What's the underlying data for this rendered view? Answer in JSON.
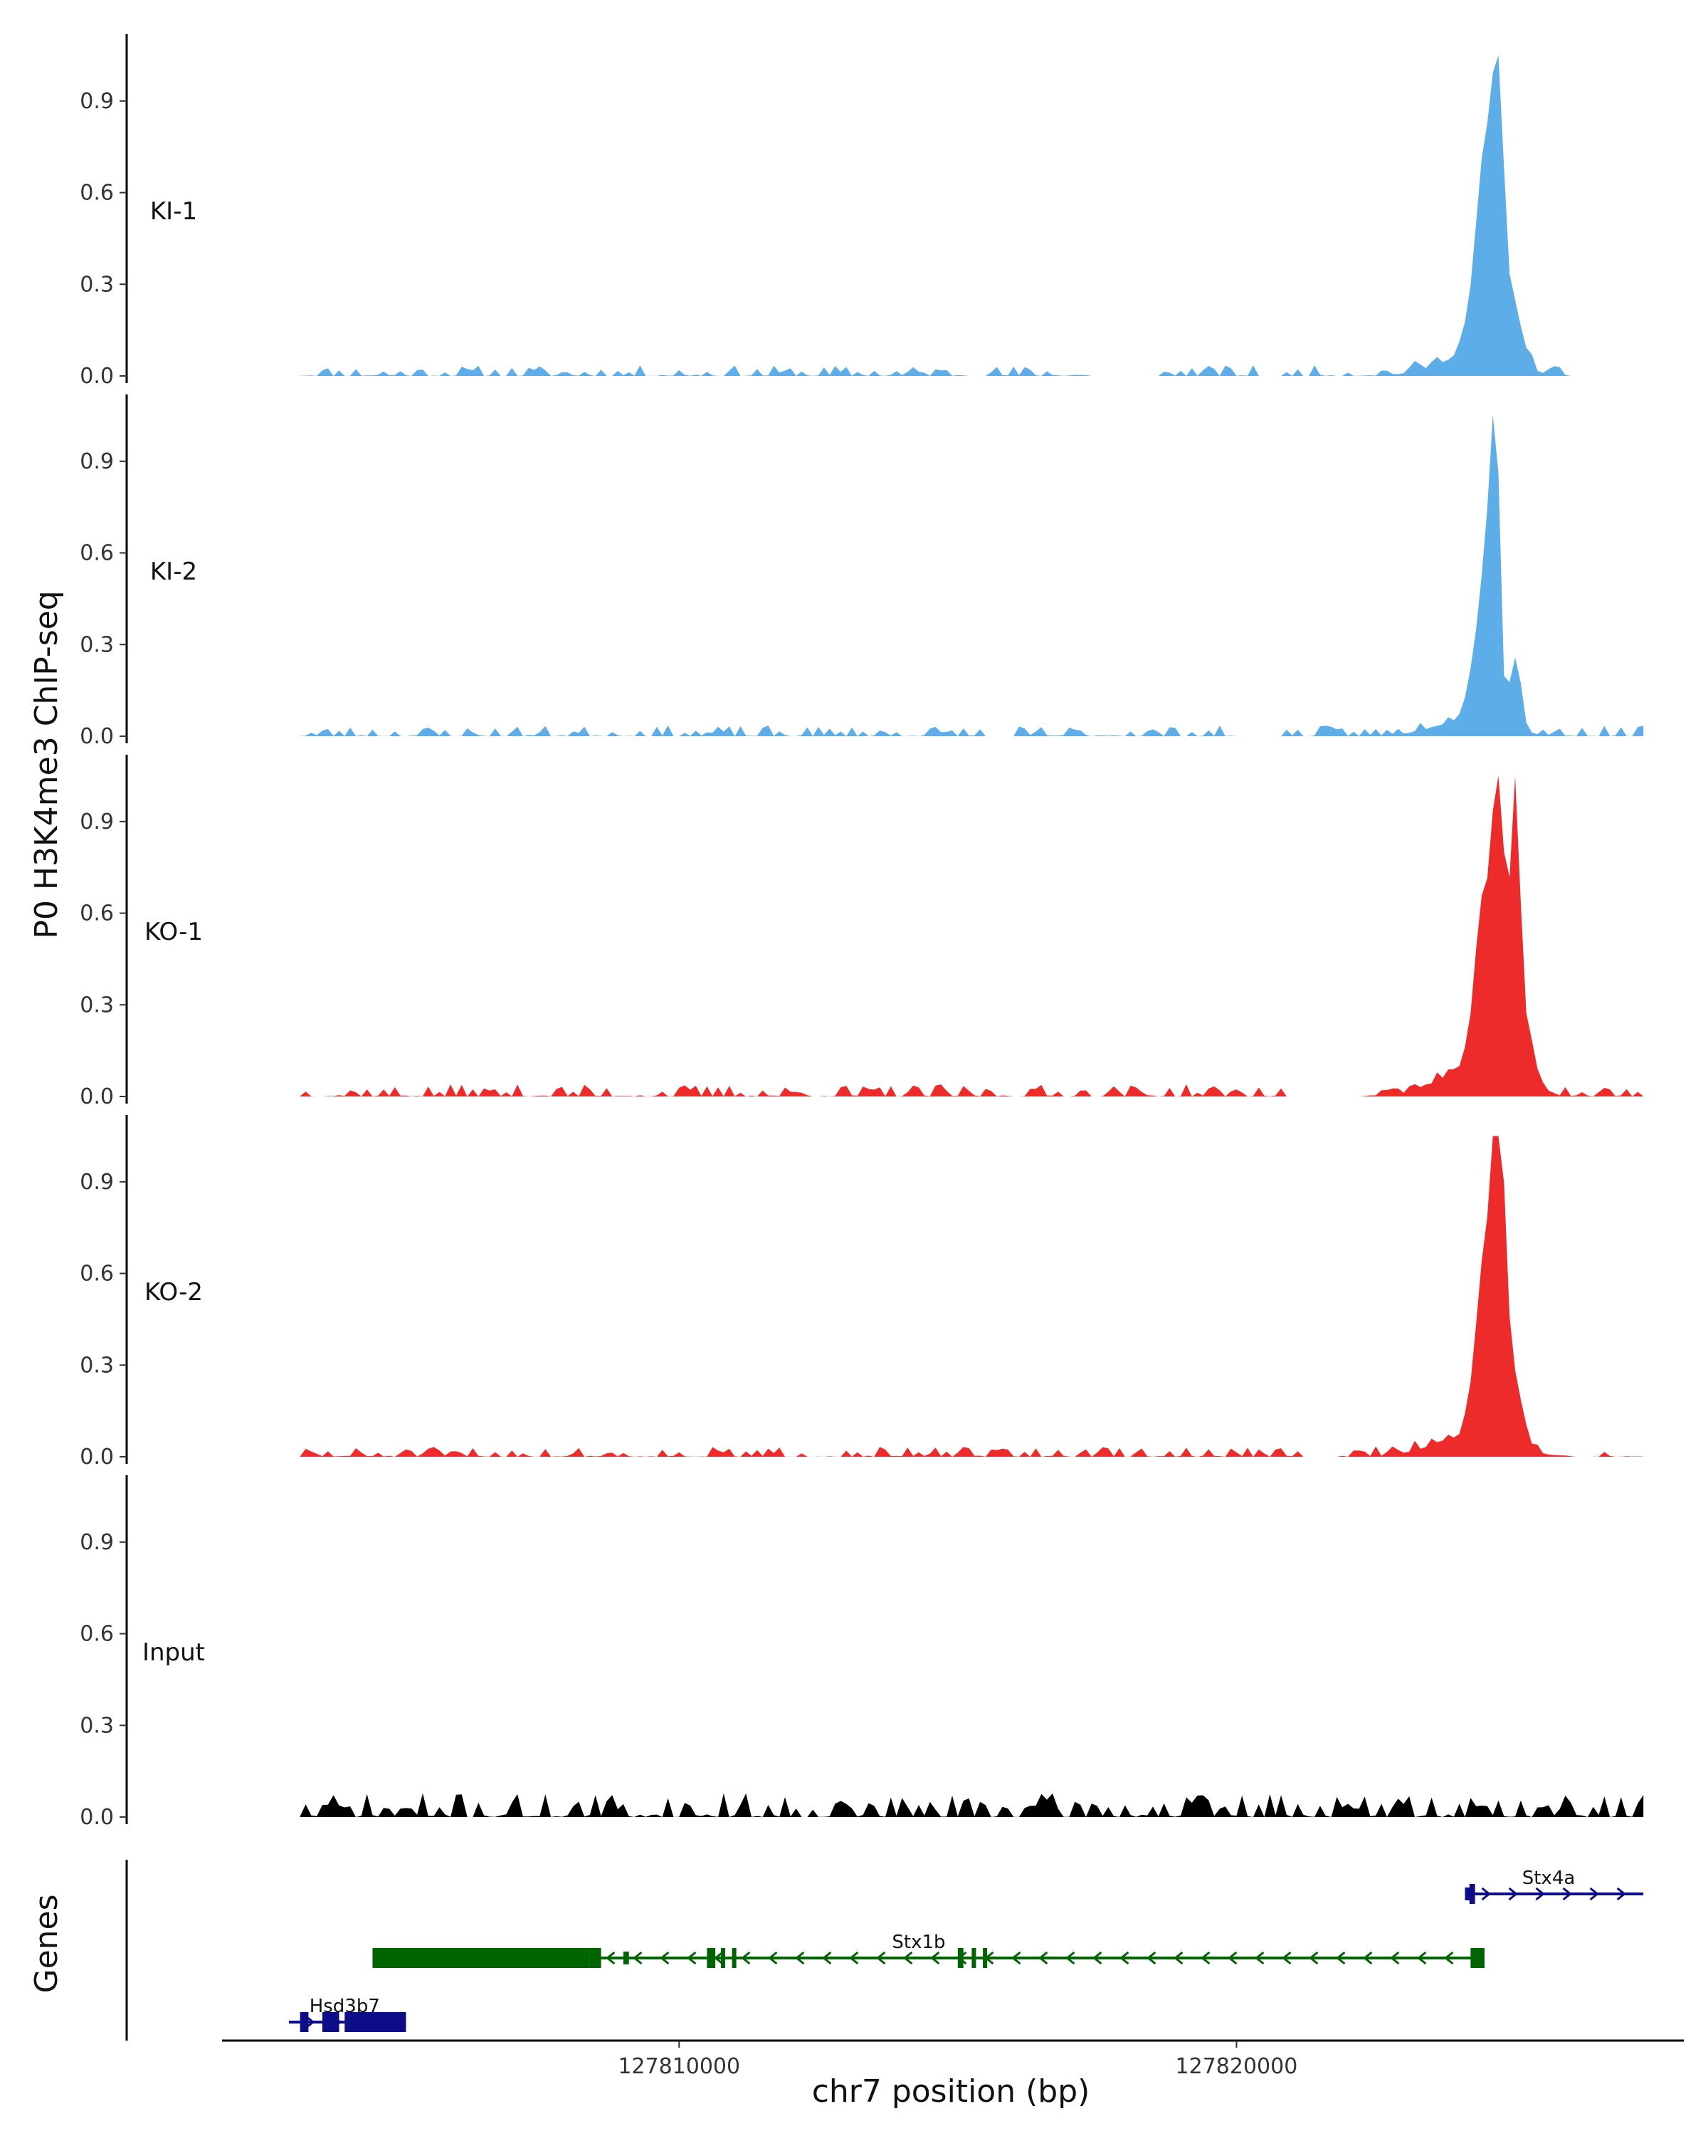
{
  "chart_data": {
    "type": "area",
    "ylabel": "P0 H3K4me3 ChIP-seq",
    "xlabel": "chr7 position (bp)",
    "genes_label": "Genes",
    "xlim": [
      127801800,
      127828000
    ],
    "ylim": [
      0,
      1.1
    ],
    "y_ticks": [
      0.0,
      0.3,
      0.6,
      0.9
    ],
    "y_tick_labels": [
      "0.0",
      "0.3",
      "0.6",
      "0.9"
    ],
    "x_ticks": [
      127810000,
      127820000
    ],
    "x_tick_labels": [
      "127810000",
      "127820000"
    ],
    "baseline_start": 127803200,
    "baseline_end": 127827300,
    "bin_bp": 300,
    "tracks": [
      {
        "name": "KI-1",
        "color": "#5DADE8",
        "gaps": [
          [
            127817400,
            127818600
          ],
          [
            127820500,
            127820800
          ],
          [
            127826000,
            127827300
          ]
        ],
        "peaks": [
          [
            127824250,
            600,
            0.04
          ],
          [
            127824350,
            180,
            0.13
          ],
          [
            127824500,
            150,
            0.3
          ],
          [
            127824700,
            90,
            0.44
          ],
          [
            127824950,
            170,
            0.12
          ]
        ],
        "noise_seed": 11,
        "noise_amp": 0.022
      },
      {
        "name": "KI-2",
        "color": "#5DADE8",
        "gaps": [
          [
            127815500,
            127816000
          ],
          [
            127820000,
            127820800
          ]
        ],
        "peaks": [
          [
            127824150,
            600,
            0.03
          ],
          [
            127824350,
            160,
            0.15
          ],
          [
            127824550,
            120,
            0.3
          ],
          [
            127824650,
            70,
            0.42
          ],
          [
            127825000,
            100,
            0.14
          ]
        ],
        "noise_seed": 23,
        "noise_amp": 0.022
      },
      {
        "name": "KO-1",
        "color": "#EE2B2B",
        "gaps": [
          [
            127820900,
            127822200
          ]
        ],
        "peaks": [
          [
            127824200,
            600,
            0.05
          ],
          [
            127824450,
            150,
            0.35
          ],
          [
            127824700,
            80,
            0.55
          ],
          [
            127825000,
            80,
            0.42
          ],
          [
            127825000,
            240,
            0.18
          ]
        ],
        "noise_seed": 37,
        "noise_amp": 0.025
      },
      {
        "name": "KO-2",
        "color": "#EE2B2B",
        "gaps": [
          [
            127821200,
            127821800
          ],
          [
            127826100,
            127826300
          ]
        ],
        "peaks": [
          [
            127824200,
            650,
            0.04
          ],
          [
            127824450,
            160,
            0.3
          ],
          [
            127824700,
            100,
            0.45
          ],
          [
            127824800,
            220,
            0.2
          ]
        ],
        "noise_seed": 51,
        "noise_amp": 0.02
      },
      {
        "name": "Input",
        "color": "#000000",
        "gaps": [],
        "peaks": [],
        "noise_seed": 71,
        "noise_amp": 0.05
      }
    ],
    "gene_tracks": [
      {
        "name": "Stx4a",
        "color": "#0D0D8A",
        "start": 127824100,
        "end": 127827300,
        "strand": "+",
        "label_pos": 127825600,
        "exons": [
          [
            127824100,
            127824220,
            "thin"
          ],
          [
            127824180,
            127824280,
            "thick"
          ]
        ]
      },
      {
        "name": "Stx1b",
        "color": "#006400",
        "start": 127804500,
        "end": 127824400,
        "strand": "-",
        "label_pos": 127814300,
        "exons": [
          [
            127804500,
            127808400,
            "thick"
          ],
          [
            127808400,
            127808600,
            "thick"
          ],
          [
            127809000,
            127809100,
            "thin"
          ],
          [
            127810500,
            127810650,
            "thick"
          ],
          [
            127810750,
            127810800,
            "thick"
          ],
          [
            127810950,
            127811000,
            "thick"
          ],
          [
            127815000,
            127815100,
            "thick"
          ],
          [
            127815250,
            127815300,
            "thick"
          ],
          [
            127815450,
            127815500,
            "thick"
          ],
          [
            127824200,
            127824450,
            "thick"
          ]
        ]
      },
      {
        "name": "Hsd3b7",
        "color": "#0D0D8A",
        "start": 127803000,
        "end": 127805100,
        "strand": "+",
        "label_pos": 127804000,
        "exons": [
          [
            127803200,
            127803350,
            "thick"
          ],
          [
            127803600,
            127803900,
            "thick"
          ],
          [
            127804000,
            127805100,
            "thick"
          ]
        ]
      }
    ]
  }
}
